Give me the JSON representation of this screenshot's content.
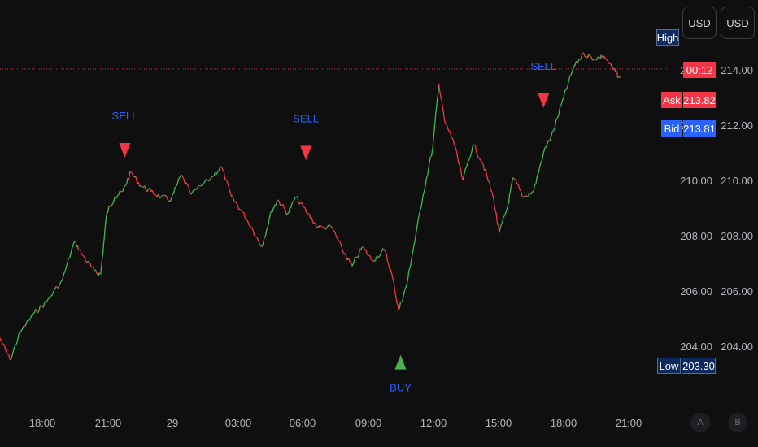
{
  "chart_data": {
    "type": "line",
    "title": "",
    "x_ticks": [
      "18:00",
      "21:00",
      "29",
      "03:00",
      "06:00",
      "09:00",
      "12:00",
      "15:00",
      "18:00",
      "21:00"
    ],
    "y_ticks": [
      214,
      212,
      210,
      208,
      206,
      204
    ],
    "y_tick_labels": [
      "214.00",
      "212.00",
      "210.00",
      "208.00",
      "206.00",
      "204.00"
    ],
    "ylim": [
      202.5,
      215.8
    ],
    "grid": false,
    "series": [
      {
        "values": [
          [
            16.5,
            204.3
          ],
          [
            17.0,
            203.5
          ],
          [
            17.5,
            204.5
          ],
          [
            18.2,
            205.2
          ],
          [
            18.8,
            205.6
          ],
          [
            19.6,
            206.4
          ],
          [
            20.2,
            207.8
          ],
          [
            20.6,
            207.3
          ],
          [
            21.2,
            206.7
          ],
          [
            21.5,
            206.6
          ],
          [
            21.8,
            208.8
          ],
          [
            22.2,
            209.4
          ],
          [
            22.6,
            209.6
          ],
          [
            23.0,
            210.3
          ],
          [
            23.5,
            209.8
          ],
          [
            24.0,
            209.6
          ],
          [
            24.5,
            209.4
          ],
          [
            25.0,
            209.3
          ],
          [
            25.5,
            210.2
          ],
          [
            26.0,
            209.5
          ],
          [
            27.0,
            210.1
          ],
          [
            27.5,
            210.5
          ],
          [
            28.0,
            209.4
          ],
          [
            28.5,
            208.9
          ],
          [
            29.0,
            208.3
          ],
          [
            29.5,
            207.6
          ],
          [
            30.0,
            208.9
          ],
          [
            30.3,
            209.3
          ],
          [
            30.8,
            208.8
          ],
          [
            31.2,
            209.4
          ],
          [
            31.8,
            208.8
          ],
          [
            32.3,
            208.3
          ],
          [
            33.0,
            208.3
          ],
          [
            33.5,
            207.5
          ],
          [
            34.0,
            206.9
          ],
          [
            34.5,
            207.6
          ],
          [
            35.0,
            207.1
          ],
          [
            35.6,
            207.5
          ],
          [
            36.0,
            206.5
          ],
          [
            36.3,
            205.3
          ],
          [
            36.7,
            206.2
          ],
          [
            37.0,
            207.4
          ],
          [
            37.5,
            209.4
          ],
          [
            38.0,
            211.2
          ],
          [
            38.3,
            213.5
          ],
          [
            38.6,
            212.1
          ],
          [
            39.0,
            211.5
          ],
          [
            39.5,
            210.0
          ],
          [
            40.0,
            211.3
          ],
          [
            40.5,
            210.6
          ],
          [
            41.0,
            209.4
          ],
          [
            41.3,
            208.1
          ],
          [
            41.7,
            209.0
          ],
          [
            42.0,
            210.1
          ],
          [
            42.5,
            209.4
          ],
          [
            43.0,
            209.6
          ],
          [
            43.5,
            211.0
          ],
          [
            44.0,
            211.8
          ],
          [
            44.5,
            213.0
          ],
          [
            45.0,
            214.1
          ],
          [
            45.5,
            214.6
          ],
          [
            46.0,
            214.4
          ],
          [
            46.5,
            214.5
          ],
          [
            47.0,
            214.0
          ],
          [
            47.3,
            213.7
          ]
        ]
      }
    ],
    "signals": [
      {
        "type": "sell",
        "label": "SELL",
        "time": 22.7,
        "price": 211.0
      },
      {
        "type": "sell",
        "label": "SELL",
        "time": 31.7,
        "price": 210.9
      },
      {
        "type": "buy",
        "label": "BUY",
        "time": 36.4,
        "price": 204.1
      },
      {
        "type": "sell",
        "label": "SELL",
        "time": 43.5,
        "price": 212.8
      }
    ],
    "reference_price": 214.0
  },
  "toolbar": {
    "currency_1": "USD",
    "currency_2": "USD"
  },
  "price_tags": {
    "high_label": "High",
    "countdown": "00:12",
    "ask_label": "Ask",
    "ask_value": "213.82",
    "bid_label": "Bid",
    "bid_value": "213.81",
    "low_label": "Low",
    "low_value": "203.30"
  },
  "scale_buttons": {
    "auto": "A",
    "log": "B"
  },
  "colors": {
    "background": "#0f0f0f",
    "up": "#26a69a",
    "up_alt": "#3fb950",
    "down": "#f23645",
    "sell": "#f23645",
    "buy": "#4caf50",
    "signal_text": "#2962ff",
    "axis_text": "#b2b5be",
    "tag_bg": "#0d2a5e",
    "ask_bg": "#f23645",
    "bid_bg": "#2962ff"
  }
}
